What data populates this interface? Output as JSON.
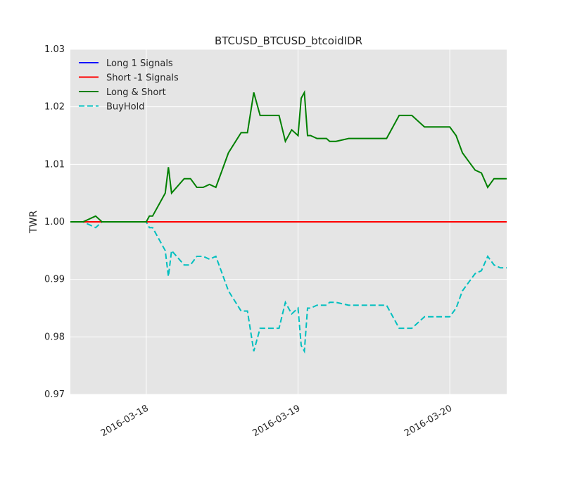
{
  "chart_data": {
    "type": "line",
    "title": "BTCUSD_BTCUSD_btcoidIDR",
    "xlabel": "",
    "ylabel": "TWR",
    "ylim": [
      0.97,
      1.03
    ],
    "yticks": [
      "0.97",
      "0.98",
      "0.99",
      "1.00",
      "1.01",
      "1.02",
      "1.03"
    ],
    "xlim": [
      "2016-03-17 12:00",
      "2016-03-20 09:00"
    ],
    "xticks": [
      "2016-03-18",
      "2016-03-19",
      "2016-03-20"
    ],
    "grid": true,
    "legend_position": "top-left",
    "series": [
      {
        "name": "Long 1 Signals",
        "color": "#0000ff",
        "style": "solid",
        "x": [
          "2016-03-17 12:00",
          "2016-03-20 09:00"
        ],
        "y": [
          1.0,
          1.0
        ]
      },
      {
        "name": "Short -1 Signals",
        "color": "#ff0000",
        "style": "solid",
        "x": [
          "2016-03-17 12:00",
          "2016-03-20 09:00"
        ],
        "y": [
          1.0,
          1.0
        ]
      },
      {
        "name": "Long & Short",
        "color": "#008000",
        "style": "solid",
        "x": [
          "2016-03-17 12:00",
          "2016-03-17 14:00",
          "2016-03-17 16:00",
          "2016-03-17 17:00",
          "2016-03-17 18:00",
          "2016-03-17 20:00",
          "2016-03-17 23:00",
          "2016-03-18 00:00",
          "2016-03-18 00:30",
          "2016-03-18 01:00",
          "2016-03-18 02:00",
          "2016-03-18 03:00",
          "2016-03-18 03:30",
          "2016-03-18 04:00",
          "2016-03-18 06:00",
          "2016-03-18 07:00",
          "2016-03-18 08:00",
          "2016-03-18 09:00",
          "2016-03-18 10:00",
          "2016-03-18 11:00",
          "2016-03-18 12:00",
          "2016-03-18 13:00",
          "2016-03-18 15:00",
          "2016-03-18 16:00",
          "2016-03-18 17:00",
          "2016-03-18 18:00",
          "2016-03-18 20:00",
          "2016-03-18 21:00",
          "2016-03-18 22:00",
          "2016-03-18 23:00",
          "2016-03-19 00:00",
          "2016-03-19 00:30",
          "2016-03-19 01:00",
          "2016-03-19 01:30",
          "2016-03-19 02:00",
          "2016-03-19 03:00",
          "2016-03-19 04:00",
          "2016-03-19 04:30",
          "2016-03-19 05:00",
          "2016-03-19 06:00",
          "2016-03-19 08:00",
          "2016-03-19 09:00",
          "2016-03-19 12:00",
          "2016-03-19 14:00",
          "2016-03-19 16:00",
          "2016-03-19 18:00",
          "2016-03-19 20:00",
          "2016-03-19 22:00",
          "2016-03-19 23:00",
          "2016-03-20 00:00",
          "2016-03-20 01:00",
          "2016-03-20 02:00",
          "2016-03-20 03:00",
          "2016-03-20 04:00",
          "2016-03-20 05:00",
          "2016-03-20 06:00",
          "2016-03-20 07:00",
          "2016-03-20 08:00",
          "2016-03-20 09:00"
        ],
        "y": [
          1.0,
          1.0,
          1.001,
          1.0,
          1.0,
          1.0,
          1.0,
          1.0,
          1.001,
          1.001,
          1.003,
          1.005,
          1.0095,
          1.005,
          1.0075,
          1.0075,
          1.006,
          1.006,
          1.0065,
          1.006,
          1.009,
          1.012,
          1.0155,
          1.0155,
          1.0225,
          1.0185,
          1.0185,
          1.0185,
          1.014,
          1.016,
          1.015,
          1.0215,
          1.0225,
          1.015,
          1.015,
          1.0145,
          1.0145,
          1.0145,
          1.014,
          1.014,
          1.0145,
          1.0145,
          1.0145,
          1.0145,
          1.0185,
          1.0185,
          1.0165,
          1.0165,
          1.0165,
          1.0165,
          1.015,
          1.012,
          1.0105,
          1.009,
          1.0085,
          1.006,
          1.0075,
          1.0075,
          1.0075
        ]
      },
      {
        "name": "BuyHold",
        "color": "#00bfbf",
        "style": "dashed",
        "x": [
          "2016-03-17 12:00",
          "2016-03-17 14:00",
          "2016-03-17 16:00",
          "2016-03-17 17:00",
          "2016-03-17 18:00",
          "2016-03-17 20:00",
          "2016-03-17 23:00",
          "2016-03-18 00:00",
          "2016-03-18 00:30",
          "2016-03-18 01:00",
          "2016-03-18 02:00",
          "2016-03-18 03:00",
          "2016-03-18 03:30",
          "2016-03-18 04:00",
          "2016-03-18 06:00",
          "2016-03-18 07:00",
          "2016-03-18 08:00",
          "2016-03-18 09:00",
          "2016-03-18 10:00",
          "2016-03-18 11:00",
          "2016-03-18 12:00",
          "2016-03-18 13:00",
          "2016-03-18 15:00",
          "2016-03-18 16:00",
          "2016-03-18 17:00",
          "2016-03-18 18:00",
          "2016-03-18 20:00",
          "2016-03-18 21:00",
          "2016-03-18 22:00",
          "2016-03-18 23:00",
          "2016-03-19 00:00",
          "2016-03-19 00:30",
          "2016-03-19 01:00",
          "2016-03-19 01:30",
          "2016-03-19 02:00",
          "2016-03-19 03:00",
          "2016-03-19 04:00",
          "2016-03-19 04:30",
          "2016-03-19 05:00",
          "2016-03-19 06:00",
          "2016-03-19 08:00",
          "2016-03-19 09:00",
          "2016-03-19 12:00",
          "2016-03-19 14:00",
          "2016-03-19 16:00",
          "2016-03-19 18:00",
          "2016-03-19 20:00",
          "2016-03-19 22:00",
          "2016-03-19 23:00",
          "2016-03-20 00:00",
          "2016-03-20 01:00",
          "2016-03-20 02:00",
          "2016-03-20 03:00",
          "2016-03-20 04:00",
          "2016-03-20 05:00",
          "2016-03-20 06:00",
          "2016-03-20 07:00",
          "2016-03-20 08:00",
          "2016-03-20 09:00"
        ],
        "y": [
          1.0,
          1.0,
          0.999,
          1.0,
          1.0,
          1.0,
          1.0,
          1.0,
          0.999,
          0.999,
          0.997,
          0.995,
          0.9905,
          0.995,
          0.9925,
          0.9925,
          0.994,
          0.994,
          0.9935,
          0.994,
          0.991,
          0.988,
          0.9845,
          0.9845,
          0.9775,
          0.9815,
          0.9815,
          0.9815,
          0.986,
          0.984,
          0.985,
          0.9785,
          0.9775,
          0.985,
          0.985,
          0.9855,
          0.9855,
          0.9855,
          0.986,
          0.986,
          0.9855,
          0.9855,
          0.9855,
          0.9855,
          0.9815,
          0.9815,
          0.9835,
          0.9835,
          0.9835,
          0.9835,
          0.985,
          0.988,
          0.9895,
          0.991,
          0.9915,
          0.994,
          0.9925,
          0.992,
          0.992
        ]
      }
    ]
  }
}
